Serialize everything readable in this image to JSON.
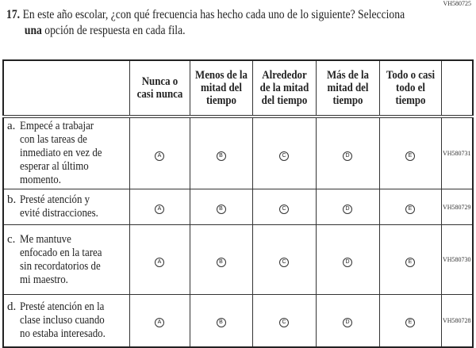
{
  "question_code": "VH580725",
  "question": {
    "number": "17.",
    "line1": "En este año escolar, ¿con qué frecuencia has hecho cada uno de lo siguiente? Selecciona",
    "bold": "una",
    "line2_rest": " opción de respuesta en cada fila."
  },
  "columns": [
    "Nunca o casi nunca",
    "Menos de la mitad del tiempo",
    "Alrededor de la mitad del tiempo",
    "Más de la mitad del tiempo",
    "Todo o casi todo el tiempo"
  ],
  "options": [
    "A",
    "B",
    "C",
    "D",
    "E"
  ],
  "rows": [
    {
      "letter": "a.",
      "text": "Empecé a trabajar con las tareas de inmediato en vez de esperar al último momento.",
      "code": "VH580731"
    },
    {
      "letter": "b.",
      "text": "Presté atención y evité distracciones.",
      "code": "VH580729"
    },
    {
      "letter": "c.",
      "text": "Me mantuve enfocado en la tarea sin recordatorios de mi maestro.",
      "code": "VH580730"
    },
    {
      "letter": "d.",
      "text": "Presté atención en la clase incluso cuando no estaba interesado.",
      "code": "VH580728"
    }
  ]
}
